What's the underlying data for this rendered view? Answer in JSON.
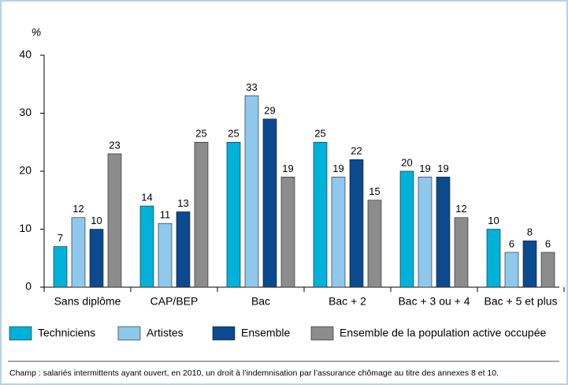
{
  "chart_data": {
    "type": "bar",
    "y_label": "%",
    "categories": [
      "Sans diplôme",
      "CAP/BEP",
      "Bac",
      "Bac + 2",
      "Bac + 3 ou + 4",
      "Bac + 5 et plus"
    ],
    "series": [
      {
        "name": "Techniciens",
        "color": "#00b2d9",
        "values": [
          7,
          14,
          25,
          25,
          20,
          10
        ]
      },
      {
        "name": "Artistes",
        "color": "#8ec8ec",
        "values": [
          12,
          11,
          33,
          19,
          19,
          6
        ]
      },
      {
        "name": "Ensemble",
        "color": "#0b4a8e",
        "values": [
          10,
          13,
          29,
          22,
          19,
          8
        ]
      },
      {
        "name": "Ensemble de la population active occupée",
        "color": "#8c8c8c",
        "values": [
          23,
          25,
          19,
          15,
          12,
          6
        ]
      }
    ],
    "ylim": [
      0,
      40
    ],
    "yticks": [
      0,
      10,
      20,
      30,
      40
    ],
    "grid": false,
    "note": "Champ : salariés intermittents ayant ouvert, en 2010, un droit à l’indemnisation par l’assurance chômage au titre des annexes 8 et 10."
  }
}
